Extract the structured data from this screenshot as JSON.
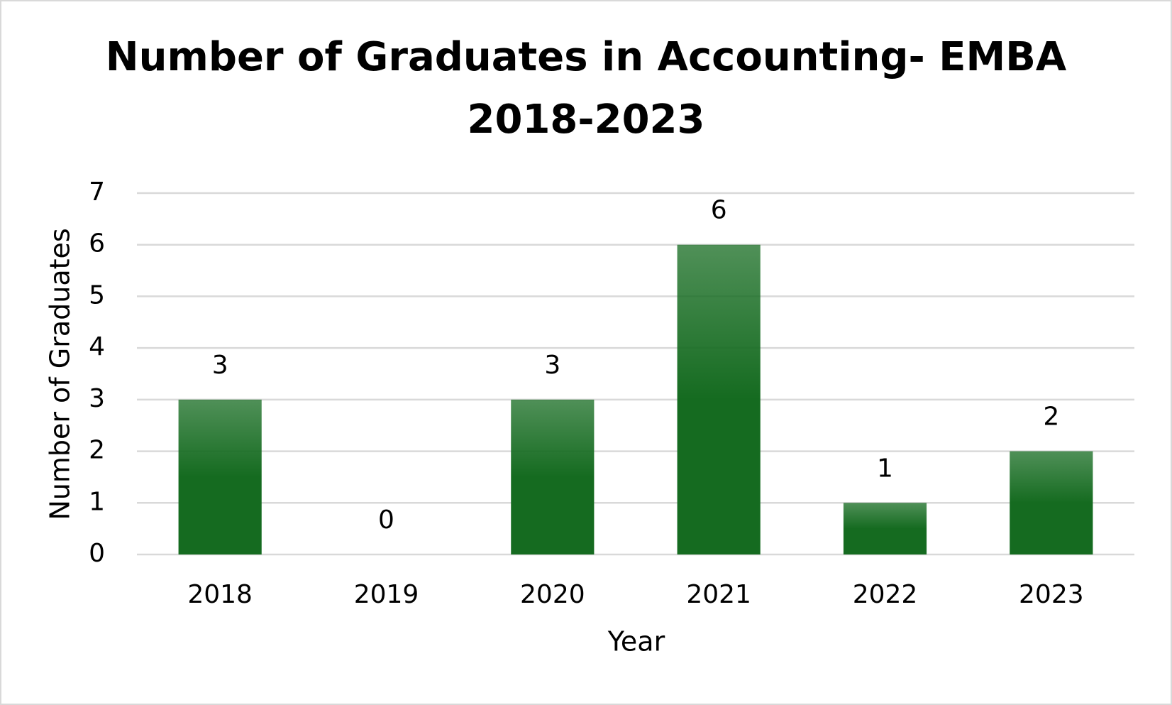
{
  "chart_data": {
    "type": "bar",
    "title": [
      "Number of Graduates in Accounting- EMBA",
      "2018-2023"
    ],
    "x_label": "Year",
    "y_label": "Number of Graduates",
    "categories": [
      "2018",
      "2019",
      "2020",
      "2021",
      "2022",
      "2023"
    ],
    "values": [
      3,
      0,
      3,
      6,
      1,
      2
    ],
    "color": "#156b20",
    "ylim": [
      0,
      7
    ],
    "yticks": [
      0,
      1,
      2,
      3,
      4,
      5,
      6,
      7
    ],
    "grid": true
  }
}
